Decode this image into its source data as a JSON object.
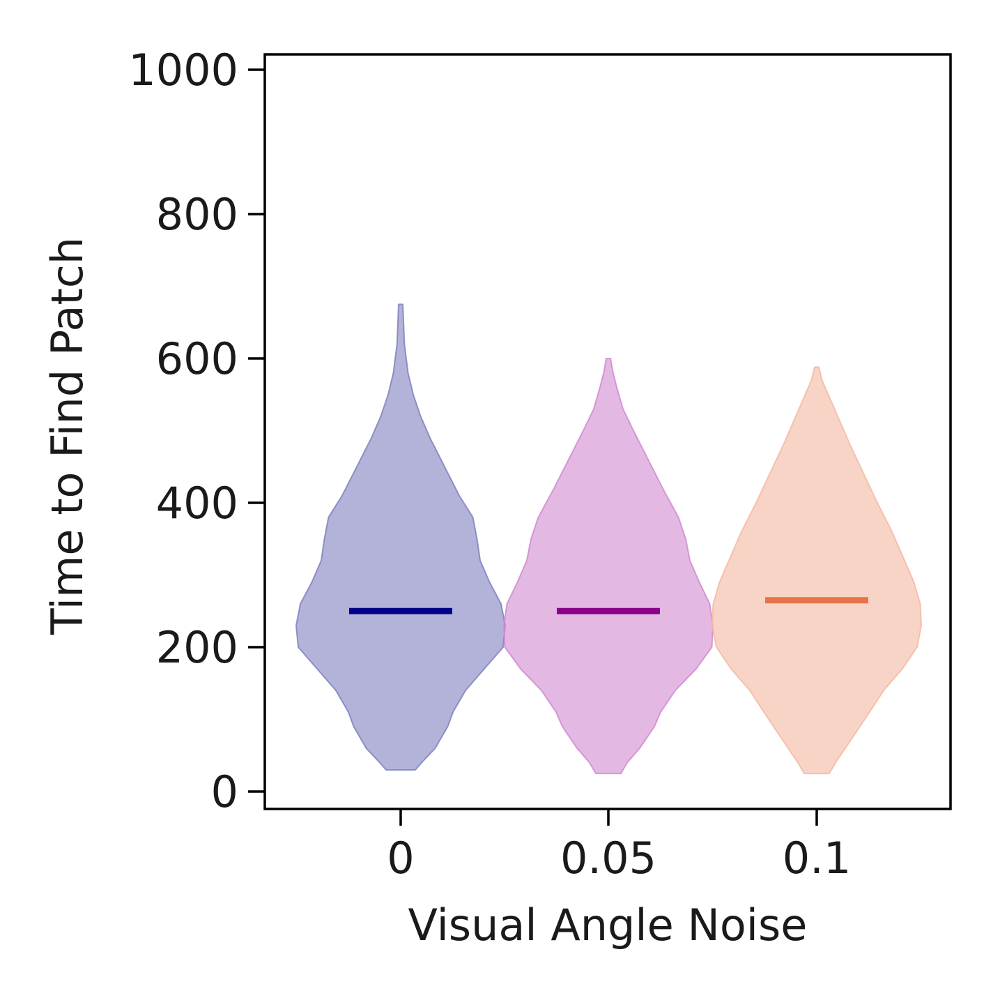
{
  "chart_data": {
    "type": "violin",
    "xlabel": "Visual Angle Noise",
    "ylabel": "Time to Find Patch",
    "ylim": [
      0,
      1000
    ],
    "yticks": [
      0,
      200,
      400,
      600,
      800,
      1000
    ],
    "categories": [
      "0",
      "0.05",
      "0.1"
    ],
    "grid": false,
    "series": [
      {
        "color": "#00008b",
        "fill_color": "#8080c0",
        "median": 250,
        "min": 30,
        "max": 675,
        "density": [
          [
            30,
            0.14
          ],
          [
            40,
            0.2
          ],
          [
            60,
            0.33
          ],
          [
            90,
            0.45
          ],
          [
            110,
            0.5
          ],
          [
            140,
            0.62
          ],
          [
            170,
            0.8
          ],
          [
            200,
            0.98
          ],
          [
            230,
            1.0
          ],
          [
            260,
            0.96
          ],
          [
            290,
            0.85
          ],
          [
            320,
            0.76
          ],
          [
            350,
            0.73
          ],
          [
            380,
            0.69
          ],
          [
            410,
            0.56
          ],
          [
            450,
            0.42
          ],
          [
            490,
            0.28
          ],
          [
            520,
            0.19
          ],
          [
            550,
            0.12
          ],
          [
            580,
            0.07
          ],
          [
            620,
            0.035
          ],
          [
            675,
            0.02
          ]
        ]
      },
      {
        "color": "#8b008b",
        "fill_color": "#d08ad0",
        "median": 250,
        "min": 25,
        "max": 600,
        "density": [
          [
            25,
            0.12
          ],
          [
            40,
            0.18
          ],
          [
            60,
            0.3
          ],
          [
            90,
            0.44
          ],
          [
            110,
            0.5
          ],
          [
            140,
            0.64
          ],
          [
            170,
            0.84
          ],
          [
            200,
            0.99
          ],
          [
            230,
            1.0
          ],
          [
            260,
            0.97
          ],
          [
            290,
            0.87
          ],
          [
            320,
            0.78
          ],
          [
            350,
            0.74
          ],
          [
            380,
            0.67
          ],
          [
            420,
            0.52
          ],
          [
            460,
            0.38
          ],
          [
            500,
            0.24
          ],
          [
            530,
            0.14
          ],
          [
            560,
            0.08
          ],
          [
            580,
            0.045
          ],
          [
            600,
            0.02
          ]
        ]
      },
      {
        "color": "#e8734a",
        "fill_color": "#f4b8a2",
        "median": 265,
        "min": 25,
        "max": 588,
        "density": [
          [
            25,
            0.12
          ],
          [
            40,
            0.18
          ],
          [
            70,
            0.32
          ],
          [
            100,
            0.46
          ],
          [
            140,
            0.64
          ],
          [
            170,
            0.82
          ],
          [
            200,
            0.96
          ],
          [
            230,
            1.0
          ],
          [
            260,
            0.99
          ],
          [
            290,
            0.93
          ],
          [
            320,
            0.84
          ],
          [
            360,
            0.72
          ],
          [
            400,
            0.58
          ],
          [
            440,
            0.45
          ],
          [
            480,
            0.32
          ],
          [
            520,
            0.2
          ],
          [
            550,
            0.11
          ],
          [
            570,
            0.05
          ],
          [
            588,
            0.02
          ]
        ]
      }
    ]
  }
}
